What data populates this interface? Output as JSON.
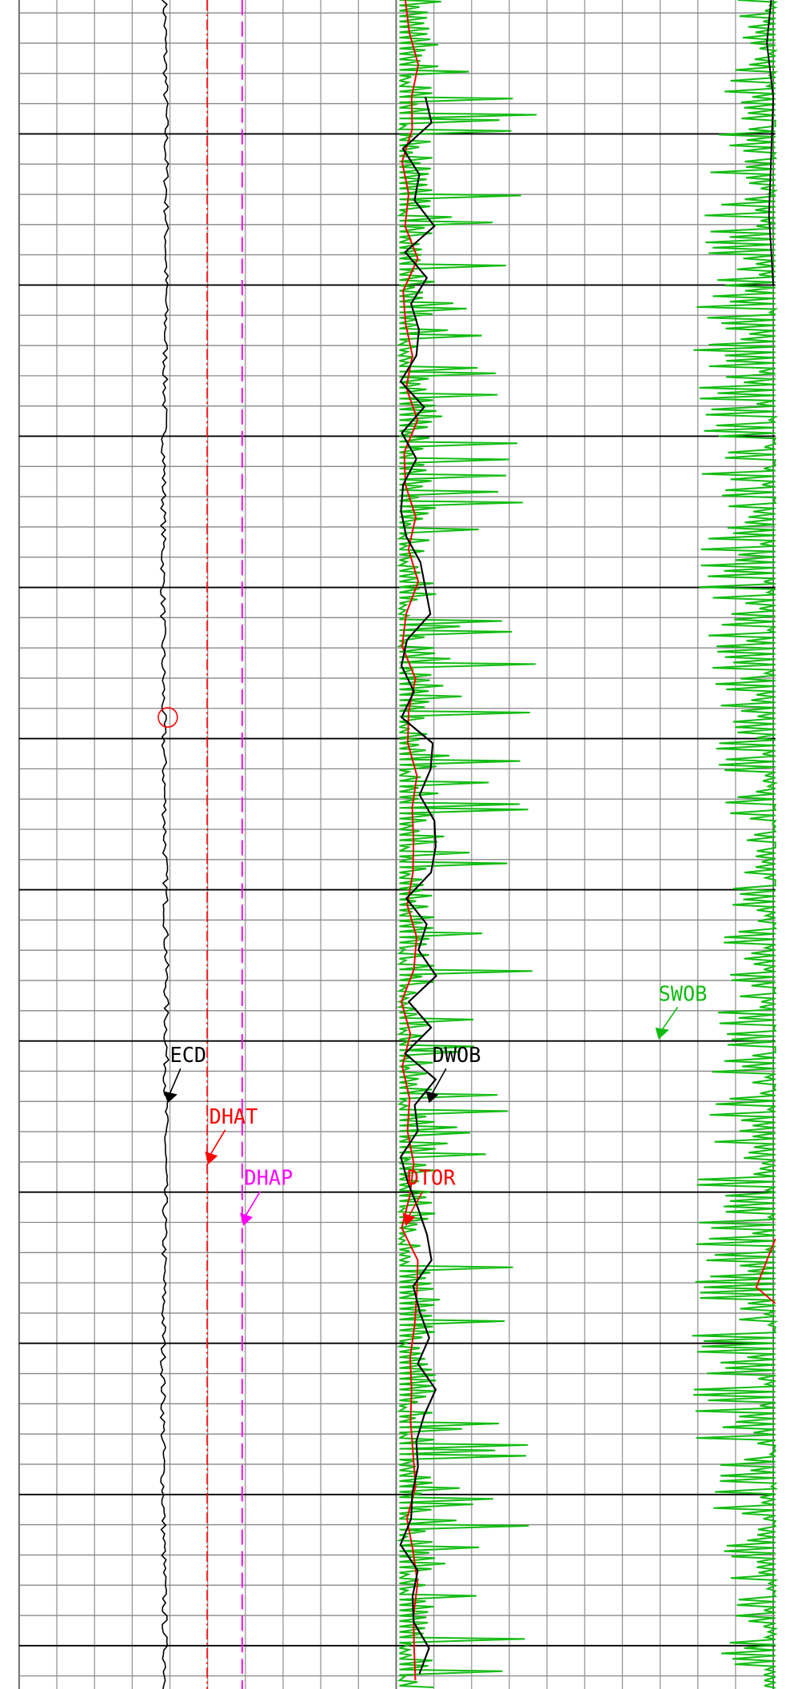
{
  "labels": [
    {
      "text": "ECD"
    },
    {
      "text": "DHAT"
    },
    {
      "text": "DHAP"
    },
    {
      "text": "DTOR"
    },
    {
      "text": "DWOB"
    },
    {
      "text": "SWOB"
    }
  ]
}
